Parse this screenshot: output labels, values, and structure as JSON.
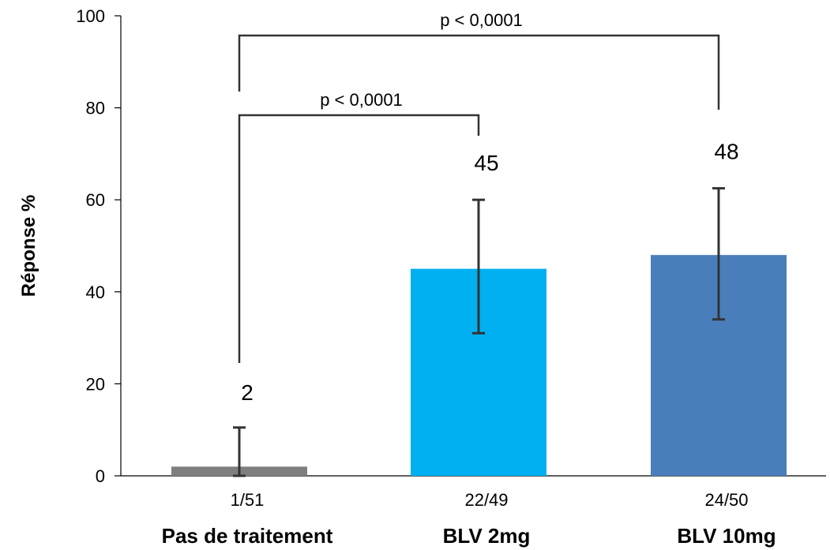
{
  "chart_data": {
    "type": "bar",
    "ylabel": "Réponse  %",
    "ylim": [
      0,
      100
    ],
    "yticks": [
      0,
      20,
      40,
      60,
      80,
      100
    ],
    "grid": false,
    "categories": [
      "Pas de traitement",
      "BLV 2mg",
      "BLV 10mg"
    ],
    "ratios": [
      "1/51",
      "22/49",
      "24/50"
    ],
    "values": [
      2,
      45,
      48
    ],
    "data_labels": [
      "2",
      "45",
      "48"
    ],
    "error_low": [
      0,
      31,
      34
    ],
    "error_high": [
      10.5,
      60,
      62.5
    ],
    "colors": [
      "#7f7f7f",
      "#00b0f0",
      "#4a7ebb"
    ],
    "comparisons": [
      {
        "from": 0,
        "to": 1,
        "label": "p < 0,0001"
      },
      {
        "from": 0,
        "to": 2,
        "label": "p < 0,0001"
      }
    ]
  }
}
